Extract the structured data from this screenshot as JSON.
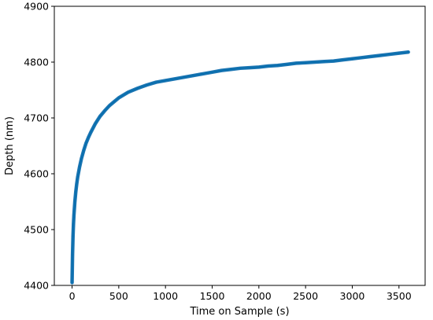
{
  "chart_data": {
    "type": "line",
    "title": "",
    "xlabel": "Time on Sample (s)",
    "ylabel": "Depth (nm)",
    "xlim": [
      -190,
      3780
    ],
    "ylim": [
      4400,
      4900
    ],
    "xticks": [
      0,
      500,
      1000,
      1500,
      2000,
      2500,
      3000,
      3500
    ],
    "xtick_labels": [
      "0",
      "500",
      "1000",
      "1500",
      "2000",
      "2500",
      "3000",
      "3500"
    ],
    "yticks": [
      4400,
      4500,
      4600,
      4700,
      4800,
      4900
    ],
    "ytick_labels": [
      "4400",
      "4500",
      "4600",
      "4700",
      "4800",
      "4900"
    ],
    "grid": false,
    "series": [
      {
        "color": "#1f77b4",
        "line_color": "#0a6fae",
        "x": [
          0,
          5,
          10,
          15,
          20,
          30,
          40,
          50,
          60,
          80,
          100,
          125,
          150,
          175,
          200,
          250,
          300,
          350,
          400,
          450,
          500,
          600,
          700,
          800,
          900,
          1000,
          1100,
          1200,
          1300,
          1400,
          1500,
          1600,
          1700,
          1800,
          1900,
          2000,
          2100,
          2200,
          2300,
          2400,
          2500,
          2600,
          2700,
          2800,
          2900,
          3000,
          3100,
          3200,
          3300,
          3400,
          3500,
          3600
        ],
        "y": [
          4405,
          4455,
          4488,
          4510,
          4526,
          4550,
          4568,
          4582,
          4594,
          4612,
          4627,
          4642,
          4655,
          4665,
          4674,
          4690,
          4703,
          4713,
          4722,
          4729,
          4736,
          4746,
          4753,
          4759,
          4764,
          4767,
          4770,
          4773,
          4776,
          4779,
          4782,
          4785,
          4787,
          4789,
          4790,
          4791,
          4793,
          4794,
          4796,
          4798,
          4799,
          4800,
          4801,
          4802,
          4804,
          4806,
          4808,
          4810,
          4812,
          4814,
          4816,
          4818
        ]
      }
    ]
  }
}
